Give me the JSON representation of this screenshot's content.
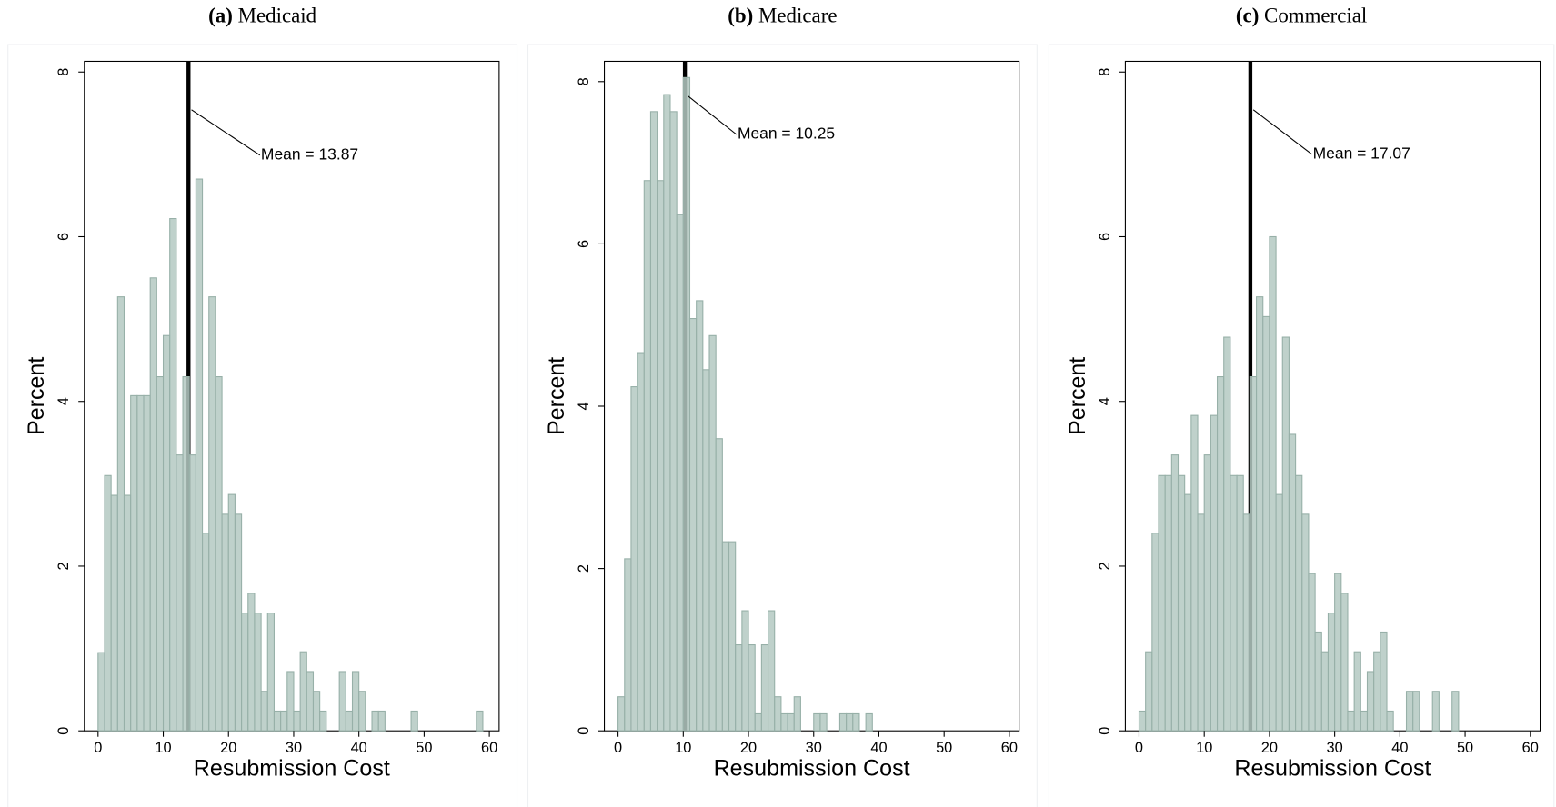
{
  "chart_data": [
    {
      "type": "histogram",
      "panel_label": "(a)",
      "title": "Medicaid",
      "xlabel": "Resubmission Cost",
      "ylabel": "Percent",
      "bins": [
        0,
        1,
        2,
        3,
        4,
        5,
        6,
        7,
        8,
        9,
        10,
        11,
        12,
        13,
        14,
        15,
        16,
        17,
        18,
        19,
        20,
        21,
        22,
        23,
        24,
        25,
        26,
        27,
        28,
        29,
        30,
        31,
        32,
        33,
        34,
        35,
        36,
        37,
        38,
        39,
        40,
        41,
        42,
        43,
        44,
        45,
        46,
        47,
        48,
        49,
        50,
        51,
        52,
        53,
        54,
        55,
        56,
        57,
        58,
        59,
        60
      ],
      "values": [
        0.95,
        3.1,
        2.86,
        5.27,
        2.86,
        4.07,
        4.07,
        4.07,
        5.5,
        4.3,
        4.8,
        6.22,
        3.35,
        4.3,
        3.35,
        6.7,
        2.4,
        5.27,
        4.3,
        2.63,
        2.87,
        2.63,
        1.43,
        1.67,
        1.43,
        0.48,
        1.43,
        0.24,
        0.24,
        0.72,
        0.24,
        0.96,
        0.72,
        0.48,
        0.24,
        0,
        0,
        0.72,
        0.24,
        0.72,
        0.48,
        0,
        0.24,
        0.24,
        0,
        0,
        0,
        0,
        0.24,
        0,
        0,
        0,
        0,
        0,
        0,
        0,
        0,
        0,
        0.24,
        0
      ],
      "mean": 13.87,
      "mean_label": "Mean = 13.87",
      "color": "#b4c9c2",
      "xlim": [
        -2.1,
        61.5
      ],
      "xticks": [
        0,
        10,
        20,
        30,
        40,
        50,
        60
      ],
      "ylim": [
        0,
        8.13
      ],
      "yticks": [
        0,
        2,
        4,
        6,
        8
      ]
    },
    {
      "type": "histogram",
      "panel_label": "(b)",
      "title": "Medicare",
      "xlabel": "Resubmission Cost",
      "ylabel": "Percent",
      "bins": [
        0,
        1,
        2,
        3,
        4,
        5,
        6,
        7,
        8,
        9,
        10,
        11,
        12,
        13,
        14,
        15,
        16,
        17,
        18,
        19,
        20,
        21,
        22,
        23,
        24,
        25,
        26,
        27,
        28,
        29,
        30,
        31,
        32,
        33,
        34,
        35,
        36,
        37,
        38,
        39,
        40,
        41,
        42,
        43,
        44,
        45,
        46,
        47,
        48,
        49,
        50,
        51,
        52,
        53,
        54,
        55,
        56,
        57,
        58,
        59,
        60
      ],
      "values": [
        0.42,
        2.12,
        4.24,
        4.66,
        6.78,
        7.63,
        6.78,
        7.84,
        7.63,
        6.36,
        8.05,
        5.08,
        5.3,
        4.45,
        4.87,
        3.6,
        2.33,
        2.33,
        1.06,
        1.48,
        1.06,
        0.21,
        1.06,
        1.48,
        0.42,
        0.21,
        0.21,
        0.42,
        0,
        0,
        0.21,
        0.21,
        0,
        0,
        0.21,
        0.21,
        0.21,
        0,
        0.21,
        0,
        0,
        0,
        0,
        0,
        0,
        0,
        0,
        0,
        0,
        0,
        0,
        0,
        0,
        0,
        0,
        0,
        0,
        0,
        0,
        0
      ],
      "mean": 10.25,
      "mean_label": "Mean = 10.25",
      "color": "#b4c9c2",
      "xlim": [
        -2.1,
        61.5
      ],
      "xticks": [
        0,
        10,
        20,
        30,
        40,
        50,
        60
      ],
      "ylim": [
        0,
        8.25
      ],
      "yticks": [
        0,
        2,
        4,
        6,
        8
      ]
    },
    {
      "type": "histogram",
      "panel_label": "(c)",
      "title": "Commercial",
      "xlabel": "Resubmission Cost",
      "ylabel": "Percent",
      "bins": [
        0,
        1,
        2,
        3,
        4,
        5,
        6,
        7,
        8,
        9,
        10,
        11,
        12,
        13,
        14,
        15,
        16,
        17,
        18,
        19,
        20,
        21,
        22,
        23,
        24,
        25,
        26,
        27,
        28,
        29,
        30,
        31,
        32,
        33,
        34,
        35,
        36,
        37,
        38,
        39,
        40,
        41,
        42,
        43,
        44,
        45,
        46,
        47,
        48,
        49,
        50,
        51,
        52,
        53,
        54,
        55,
        56,
        57,
        58,
        59,
        60
      ],
      "values": [
        0.24,
        0.96,
        2.4,
        3.1,
        3.1,
        3.35,
        3.1,
        2.87,
        3.83,
        2.63,
        3.35,
        3.83,
        4.3,
        4.78,
        3.1,
        3.1,
        2.63,
        4.3,
        5.27,
        5.03,
        6.0,
        2.87,
        4.78,
        3.6,
        3.1,
        2.63,
        1.91,
        1.2,
        0.96,
        1.43,
        1.91,
        1.67,
        0.24,
        0.96,
        0.24,
        0.72,
        0.96,
        1.2,
        0.24,
        0,
        0,
        0.48,
        0.48,
        0,
        0,
        0.48,
        0,
        0,
        0.48,
        0,
        0,
        0,
        0,
        0,
        0,
        0,
        0,
        0,
        0,
        0
      ],
      "mean": 17.07,
      "mean_label": "Mean = 17.07",
      "color": "#b4c9c2",
      "xlim": [
        -2.1,
        61.5
      ],
      "xticks": [
        0,
        10,
        20,
        30,
        40,
        50,
        60
      ],
      "ylim": [
        0,
        8.13
      ],
      "yticks": [
        0,
        2,
        4,
        6,
        8
      ]
    }
  ]
}
